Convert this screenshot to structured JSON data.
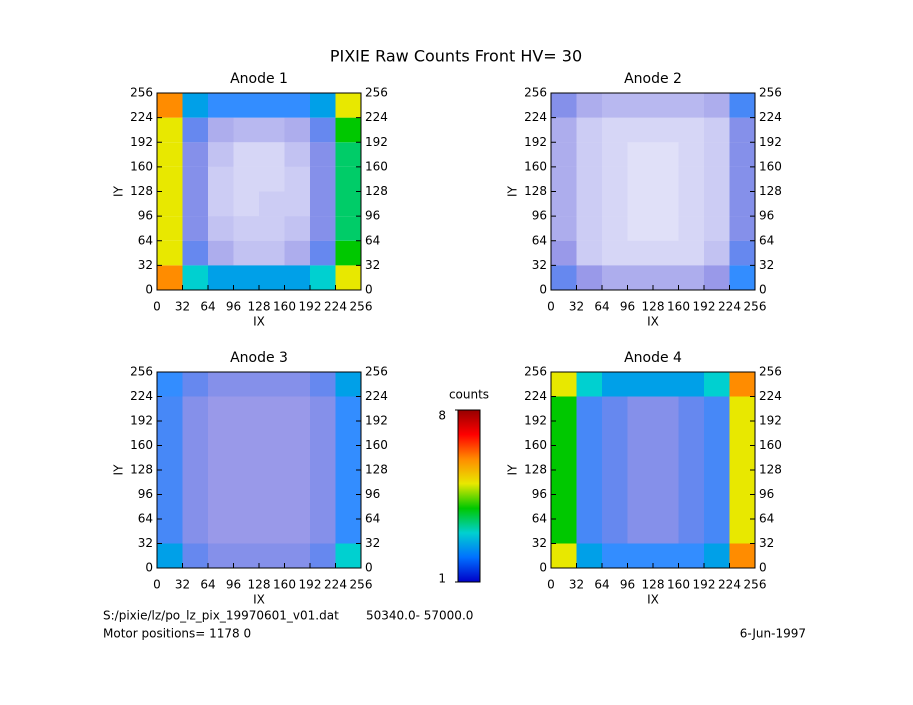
{
  "title": "PIXIE Raw Counts Front HV= 30",
  "chart_data": [
    {
      "type": "heatmap",
      "title": "Anode 1",
      "xlabel": "IX",
      "ylabel": "IY",
      "xlim": [
        0,
        256
      ],
      "ylim": [
        0,
        256
      ],
      "xticks": [
        0,
        32,
        64,
        96,
        128,
        160,
        192,
        224,
        256
      ],
      "yticks": [
        0,
        32,
        64,
        96,
        128,
        160,
        192,
        224,
        256
      ],
      "z": [
        [
          6,
          3,
          2.5,
          2.5,
          2.5,
          2.5,
          3,
          5
        ],
        [
          5,
          1.5,
          0.8,
          0.6,
          0.6,
          0.8,
          1.5,
          4
        ],
        [
          5,
          1.2,
          0.6,
          0.5,
          0.5,
          0.6,
          1.2,
          3.5
        ],
        [
          5,
          1.2,
          0.5,
          0.4,
          0.5,
          0.5,
          1.2,
          3.5
        ],
        [
          5,
          1.2,
          0.5,
          0.4,
          0.4,
          0.5,
          1.2,
          3.5
        ],
        [
          5,
          1.2,
          0.6,
          0.4,
          0.4,
          0.6,
          1.2,
          3.5
        ],
        [
          5,
          1.5,
          0.8,
          0.7,
          0.7,
          0.8,
          1.5,
          4
        ],
        [
          6,
          2.5,
          2,
          2,
          2,
          2,
          2.5,
          5
        ]
      ]
    },
    {
      "type": "heatmap",
      "title": "Anode 2",
      "xlabel": "IX",
      "ylabel": "IY",
      "xlim": [
        0,
        256
      ],
      "ylim": [
        0,
        256
      ],
      "xticks": [
        0,
        32,
        64,
        96,
        128,
        160,
        192,
        224,
        256
      ],
      "yticks": [
        0,
        32,
        64,
        96,
        128,
        160,
        192,
        224,
        256
      ],
      "z": [
        [
          1.5,
          1,
          0.8,
          0.8,
          0.8,
          0.8,
          1,
          2
        ],
        [
          1,
          0.5,
          0.4,
          0.4,
          0.4,
          0.4,
          0.6,
          1.5
        ],
        [
          0.8,
          0.5,
          0.4,
          0.3,
          0.3,
          0.4,
          0.5,
          1.2
        ],
        [
          0.8,
          0.5,
          0.4,
          0.3,
          0.3,
          0.4,
          0.5,
          1.2
        ],
        [
          0.8,
          0.5,
          0.4,
          0.3,
          0.3,
          0.4,
          0.5,
          1.2
        ],
        [
          0.8,
          0.5,
          0.4,
          0.3,
          0.3,
          0.4,
          0.5,
          1.2
        ],
        [
          0.8,
          0.5,
          0.4,
          0.4,
          0.4,
          0.4,
          0.5,
          1.2
        ],
        [
          1.2,
          0.8,
          0.7,
          0.7,
          0.7,
          0.7,
          0.8,
          1.8
        ]
      ]
    },
    {
      "type": "heatmap",
      "title": "Anode 3",
      "xlabel": "IX",
      "ylabel": "IY",
      "xlim": [
        0,
        256
      ],
      "ylim": [
        0,
        256
      ],
      "xticks": [
        0,
        32,
        64,
        96,
        128,
        160,
        192,
        224,
        256
      ],
      "yticks": [
        0,
        32,
        64,
        96,
        128,
        160,
        192,
        224,
        256
      ],
      "z": [
        [
          2.5,
          1.5,
          1.2,
          1.2,
          1.2,
          1.2,
          1.5,
          3
        ],
        [
          1.8,
          1.2,
          1,
          1,
          1,
          1,
          1.2,
          2
        ],
        [
          1.8,
          1.2,
          1,
          1,
          1,
          1,
          1.2,
          2
        ],
        [
          1.8,
          1.2,
          1,
          1,
          1,
          1,
          1.2,
          2
        ],
        [
          1.8,
          1.2,
          1,
          1,
          1,
          1,
          1.2,
          2
        ],
        [
          1.8,
          1.2,
          1,
          1,
          1,
          1,
          1.2,
          2
        ],
        [
          1.8,
          1.2,
          1,
          1,
          1,
          1,
          1.2,
          2
        ],
        [
          2,
          1.5,
          1.2,
          1.2,
          1.2,
          1.2,
          1.5,
          2.5
        ]
      ]
    },
    {
      "type": "heatmap",
      "title": "Anode 4",
      "xlabel": "IX",
      "ylabel": "IY",
      "xlim": [
        0,
        256
      ],
      "ylim": [
        0,
        256
      ],
      "xticks": [
        0,
        32,
        64,
        96,
        128,
        160,
        192,
        224,
        256
      ],
      "yticks": [
        0,
        32,
        64,
        96,
        128,
        160,
        192,
        224,
        256
      ],
      "z": [
        [
          5,
          2.5,
          2,
          2,
          2,
          2,
          2.5,
          6
        ],
        [
          4,
          1.8,
          1.5,
          1.2,
          1.2,
          1.5,
          1.8,
          5
        ],
        [
          4,
          1.8,
          1.5,
          1.2,
          1.2,
          1.5,
          1.8,
          5
        ],
        [
          4,
          1.8,
          1.5,
          1.2,
          1.2,
          1.5,
          1.8,
          5
        ],
        [
          4,
          1.8,
          1.5,
          1.2,
          1.2,
          1.5,
          1.8,
          5
        ],
        [
          4,
          1.8,
          1.5,
          1.2,
          1.2,
          1.5,
          1.8,
          5
        ],
        [
          4,
          1.8,
          1.5,
          1.2,
          1.2,
          1.5,
          1.8,
          5
        ],
        [
          5,
          3,
          2.5,
          2.5,
          2.5,
          2.5,
          3,
          6
        ]
      ]
    }
  ],
  "colorbar": {
    "label": "counts",
    "lim": [
      1,
      8
    ],
    "ticks": [
      1,
      8
    ],
    "colors": [
      "#0000c8",
      "#0070ff",
      "#00d0d0",
      "#00c800",
      "#e8e800",
      "#ff8c00",
      "#ff0000",
      "#960000"
    ]
  },
  "footer": {
    "file": "S:/pixie/lz/po_lz_pix_19970601_v01.dat",
    "range": "50340.0- 57000.0",
    "motor": "Motor positions= 1178 0",
    "date": "6-Jun-1997"
  }
}
